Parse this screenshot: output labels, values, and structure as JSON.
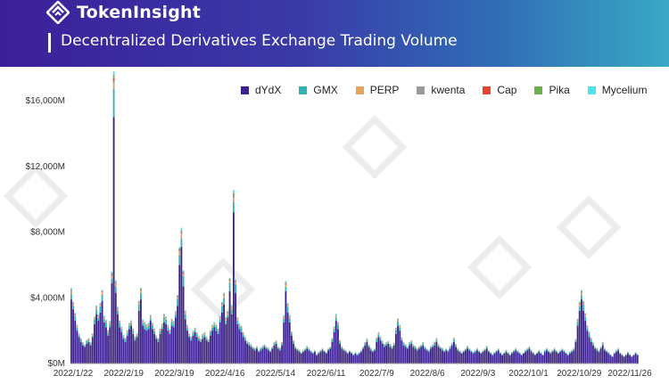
{
  "brand": {
    "name": "TokenInsight"
  },
  "chart_data": {
    "type": "bar",
    "stacked": true,
    "title": "Decentralized Derivatives Exchange Trading Volume",
    "xlabel": "",
    "ylabel": "",
    "ylim": [
      0,
      16000
    ],
    "yticks": [
      "$0M",
      "$4,000M",
      "$8,000M",
      "$12,000M",
      "$16,000M"
    ],
    "ytick_values": [
      0,
      4000,
      8000,
      12000,
      16000
    ],
    "xticks": [
      "2022/1/22",
      "2022/2/19",
      "2022/3/19",
      "2022/4/16",
      "2022/5/14",
      "2022/6/11",
      "2022/7/9",
      "2022/8/6",
      "2022/9/3",
      "2022/10/1",
      "2022/10/29",
      "2022/11/26"
    ],
    "x_start": "2022/1/22",
    "x_end": "2022/11/26",
    "legend_position": "top-right",
    "grid": false,
    "series": [
      {
        "name": "dYdX",
        "color": "#3b1f8c"
      },
      {
        "name": "GMX",
        "color": "#2fb5b0"
      },
      {
        "name": "PERP",
        "color": "#e8a35a"
      },
      {
        "name": "kwenta",
        "color": "#9a9a9a"
      },
      {
        "name": "Cap",
        "color": "#e8452a"
      },
      {
        "name": "Pika",
        "color": "#6ab04c"
      },
      {
        "name": "Mycelium",
        "color": "#4fe3f0"
      }
    ],
    "daily_volume_dydx": [
      3900,
      3300,
      2600,
      2000,
      1600,
      1300,
      1100,
      1000,
      1200,
      1300,
      1100,
      1600,
      2400,
      3000,
      2600,
      3100,
      3800,
      2500,
      2200,
      1700,
      2200,
      4900,
      15000,
      4300,
      3000,
      2200,
      1900,
      1500,
      1300,
      1700,
      2100,
      2300,
      1800,
      1400,
      1600,
      3200,
      3900,
      2300,
      2100,
      2000,
      2100,
      2600,
      2100,
      1800,
      1500,
      1300,
      1800,
      2100,
      2500,
      2400,
      2000,
      1800,
      2300,
      2200,
      2800,
      3500,
      6000,
      7100,
      4700,
      2700,
      2000,
      1600,
      1400,
      1700,
      1900,
      1600,
      1400,
      1300,
      1500,
      1600,
      1400,
      1300,
      1700,
      2000,
      2200,
      2000,
      1800,
      2500,
      3100,
      3600,
      2400,
      2800,
      4400,
      3000,
      9200,
      4300,
      2400,
      2100,
      1900,
      1600,
      1400,
      1200,
      1100,
      1000,
      900,
      800,
      900,
      700,
      800,
      900,
      1000,
      900,
      800,
      700,
      900,
      1100,
      1200,
      900,
      800,
      1100,
      2500,
      4400,
      3100,
      2500,
      1700,
      1200,
      900,
      800,
      700,
      600,
      700,
      800,
      900,
      800,
      700,
      600,
      700,
      500,
      600,
      700,
      800,
      700,
      600,
      800,
      900,
      1300,
      1900,
      2600,
      2100,
      1200,
      900,
      800,
      700,
      600,
      700,
      600,
      500,
      600,
      500,
      600,
      700,
      900,
      1100,
      1300,
      1000,
      800,
      700,
      800,
      1300,
      1600,
      1400,
      1200,
      1000,
      1100,
      1200,
      1000,
      900,
      1100,
      1800,
      2300,
      2000,
      1400,
      1100,
      1000,
      900,
      1100,
      1200,
      1000,
      900,
      800,
      900,
      1000,
      1100,
      900,
      800,
      700,
      900,
      1000,
      1100,
      1300,
      1000,
      900,
      800,
      700,
      800,
      700,
      900,
      1100,
      1300,
      1000,
      800,
      700,
      600,
      700,
      800,
      900,
      800,
      700,
      600,
      700,
      800,
      700,
      600,
      700,
      800,
      900,
      700,
      600,
      500,
      600,
      700,
      800,
      600,
      500,
      600,
      700,
      600,
      500,
      600,
      700,
      800,
      700,
      600,
      500,
      600,
      700,
      800,
      900,
      700,
      600,
      500,
      600,
      700,
      600,
      500,
      700,
      800,
      700,
      600,
      700,
      800,
      700,
      600,
      700,
      800,
      700,
      600,
      500,
      600,
      700,
      800,
      1300,
      2300,
      3200,
      3900,
      3200,
      2600,
      2000,
      1600,
      1300,
      1100,
      900,
      800,
      700,
      900,
      1100,
      800,
      700,
      600,
      500,
      400,
      600,
      700,
      800,
      600,
      500,
      400,
      500,
      600,
      500,
      400,
      500,
      600,
      500
    ],
    "annotations": []
  }
}
